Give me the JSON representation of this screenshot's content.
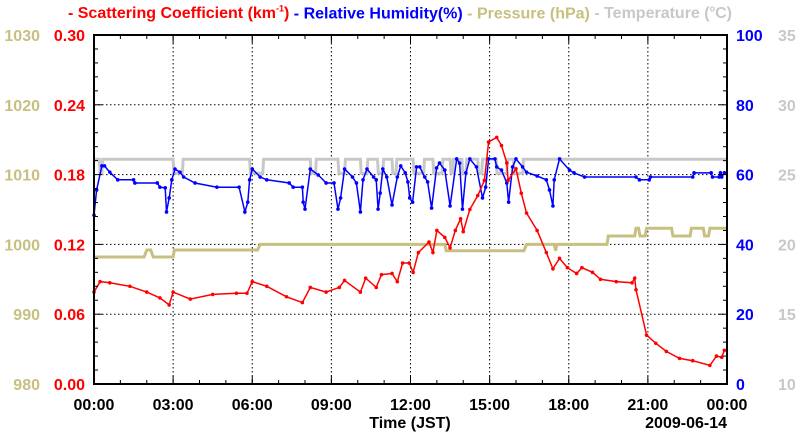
{
  "chart_data": {
    "type": "line",
    "legend": [
      {
        "label": "- Scattering Coefficient (km",
        "sup": "-1",
        "tail": ")",
        "color": "#ff0000"
      },
      {
        "label": " - Relative Humidity(%)",
        "color": "#0000ff"
      },
      {
        "label": " - Pressure (hPa)",
        "color": "#c8c080"
      },
      {
        "label": " - Temperature (",
        "sup": "o",
        "tail": "C)",
        "color": "#c8c8c8"
      }
    ],
    "xlabel": "Time (JST)",
    "date_label": "2009-06-14",
    "x_range": [
      0,
      24
    ],
    "x_ticks": [
      {
        "v": 0,
        "label": "00:00"
      },
      {
        "v": 3,
        "label": "03:00"
      },
      {
        "v": 6,
        "label": "06:00"
      },
      {
        "v": 9,
        "label": "09:00"
      },
      {
        "v": 12,
        "label": "12:00"
      },
      {
        "v": 15,
        "label": "15:00"
      },
      {
        "v": 18,
        "label": "18:00"
      },
      {
        "v": 21,
        "label": "21:00"
      },
      {
        "v": 24,
        "label": "00:00"
      }
    ],
    "axes": {
      "pressure": {
        "range": [
          980,
          1030
        ],
        "ticks": [
          "980",
          "990",
          "1000",
          "1010",
          "1020",
          "1030"
        ],
        "color": "#c8c080",
        "side": "left-outer"
      },
      "scattering": {
        "range": [
          0,
          0.3
        ],
        "ticks": [
          "0.00",
          "0.06",
          "0.12",
          "0.18",
          "0.24",
          "0.30"
        ],
        "color": "#ff0000",
        "side": "left-inner"
      },
      "humidity": {
        "range": [
          0,
          100
        ],
        "ticks": [
          "0",
          "20",
          "40",
          "60",
          "80",
          "100"
        ],
        "color": "#0000ff",
        "side": "right-inner"
      },
      "temperature": {
        "range": [
          10,
          35
        ],
        "ticks": [
          "10",
          "15",
          "20",
          "25",
          "30",
          "35"
        ],
        "color": "#c8c8c8",
        "side": "right-outer"
      }
    },
    "grid": true,
    "series": [
      {
        "name": "Scattering Coefficient",
        "axis": "scattering",
        "color": "#ff0000",
        "markers": true,
        "points": [
          [
            0,
            0.079
          ],
          [
            0.23,
            0.088
          ],
          [
            0.6,
            0.087
          ],
          [
            1.36,
            0.084
          ],
          [
            2.0,
            0.079
          ],
          [
            2.5,
            0.074
          ],
          [
            2.85,
            0.068
          ],
          [
            3.0,
            0.079
          ],
          [
            3.65,
            0.073
          ],
          [
            4.5,
            0.077
          ],
          [
            5.4,
            0.078
          ],
          [
            5.8,
            0.078
          ],
          [
            6.0,
            0.088
          ],
          [
            6.55,
            0.084
          ],
          [
            7.3,
            0.075
          ],
          [
            7.9,
            0.07
          ],
          [
            8.2,
            0.083
          ],
          [
            8.8,
            0.079
          ],
          [
            9.3,
            0.083
          ],
          [
            9.5,
            0.089
          ],
          [
            10.1,
            0.079
          ],
          [
            10.3,
            0.091
          ],
          [
            10.7,
            0.083
          ],
          [
            10.9,
            0.094
          ],
          [
            11.3,
            0.095
          ],
          [
            11.5,
            0.088
          ],
          [
            11.7,
            0.104
          ],
          [
            11.95,
            0.104
          ],
          [
            12.1,
            0.096
          ],
          [
            12.3,
            0.113
          ],
          [
            12.7,
            0.122
          ],
          [
            12.85,
            0.113
          ],
          [
            13.0,
            0.132
          ],
          [
            13.3,
            0.126
          ],
          [
            13.5,
            0.117
          ],
          [
            13.7,
            0.132
          ],
          [
            13.9,
            0.142
          ],
          [
            14.0,
            0.131
          ],
          [
            14.25,
            0.15
          ],
          [
            14.55,
            0.162
          ],
          [
            14.8,
            0.175
          ],
          [
            14.96,
            0.208
          ],
          [
            15.27,
            0.212
          ],
          [
            15.45,
            0.205
          ],
          [
            15.65,
            0.19
          ],
          [
            15.7,
            0.175
          ],
          [
            16.0,
            0.185
          ],
          [
            16.2,
            0.164
          ],
          [
            16.4,
            0.147
          ],
          [
            16.8,
            0.132
          ],
          [
            17.15,
            0.113
          ],
          [
            17.4,
            0.099
          ],
          [
            17.65,
            0.108
          ],
          [
            17.95,
            0.1
          ],
          [
            18.3,
            0.095
          ],
          [
            18.5,
            0.1
          ],
          [
            18.9,
            0.096
          ],
          [
            19.2,
            0.09
          ],
          [
            19.8,
            0.088
          ],
          [
            20.4,
            0.087
          ],
          [
            20.5,
            0.091
          ],
          [
            20.55,
            0.081
          ],
          [
            20.95,
            0.042
          ],
          [
            21.3,
            0.035
          ],
          [
            21.7,
            0.028
          ],
          [
            22.2,
            0.022
          ],
          [
            22.7,
            0.02
          ],
          [
            23.35,
            0.016
          ],
          [
            23.6,
            0.024
          ],
          [
            23.8,
            0.023
          ],
          [
            23.9,
            0.029
          ]
        ]
      },
      {
        "name": "Relative Humidity",
        "axis": "humidity",
        "color": "#0000ff",
        "markers": true,
        "points": [
          [
            0,
            48.4
          ],
          [
            0.1,
            55.6
          ],
          [
            0.3,
            62.5
          ],
          [
            0.4,
            62.5
          ],
          [
            0.6,
            60.7
          ],
          [
            0.9,
            58.5
          ],
          [
            1.5,
            58.5
          ],
          [
            1.55,
            57.6
          ],
          [
            2.4,
            57.6
          ],
          [
            2.5,
            56.4
          ],
          [
            2.7,
            56.2
          ],
          [
            2.75,
            49.3
          ],
          [
            2.85,
            53.3
          ],
          [
            2.95,
            58.5
          ],
          [
            3.07,
            61.6
          ],
          [
            3.26,
            60.7
          ],
          [
            3.4,
            59.3
          ],
          [
            3.83,
            57.6
          ],
          [
            4.66,
            56.4
          ],
          [
            5.5,
            56.4
          ],
          [
            5.72,
            49.3
          ],
          [
            5.83,
            52.1
          ],
          [
            5.9,
            58.5
          ],
          [
            6.0,
            61.6
          ],
          [
            6.3,
            59.3
          ],
          [
            6.55,
            58.5
          ],
          [
            7.4,
            57.6
          ],
          [
            7.55,
            56.4
          ],
          [
            7.9,
            56.4
          ],
          [
            7.93,
            52.1
          ],
          [
            8.0,
            50.1
          ],
          [
            8.2,
            61.6
          ],
          [
            8.5,
            59.9
          ],
          [
            8.8,
            57.6
          ],
          [
            9.1,
            57.6
          ],
          [
            9.25,
            50.1
          ],
          [
            9.35,
            53.3
          ],
          [
            9.5,
            61.6
          ],
          [
            9.8,
            59.3
          ],
          [
            9.95,
            57.6
          ],
          [
            10.1,
            49.3
          ],
          [
            10.2,
            58.5
          ],
          [
            10.35,
            61.6
          ],
          [
            10.6,
            59.3
          ],
          [
            10.7,
            58.5
          ],
          [
            10.77,
            50.1
          ],
          [
            10.85,
            54.7
          ],
          [
            10.95,
            61.6
          ],
          [
            11.1,
            59.3
          ],
          [
            11.3,
            51.3
          ],
          [
            11.5,
            59.3
          ],
          [
            11.63,
            62.5
          ],
          [
            11.8,
            60.5
          ],
          [
            11.9,
            57.9
          ],
          [
            11.97,
            53.3
          ],
          [
            12.08,
            52.1
          ],
          [
            12.23,
            62.2
          ],
          [
            12.35,
            62.2
          ],
          [
            12.54,
            59.3
          ],
          [
            12.65,
            57.9
          ],
          [
            12.8,
            50.4
          ],
          [
            12.99,
            61.9
          ],
          [
            13.1,
            63.3
          ],
          [
            13.3,
            61.3
          ],
          [
            13.5,
            51.0
          ],
          [
            13.75,
            64.5
          ],
          [
            13.86,
            63.3
          ],
          [
            13.97,
            50.1
          ],
          [
            14.1,
            60.5
          ],
          [
            14.25,
            64.5
          ],
          [
            14.5,
            62.2
          ],
          [
            14.73,
            53.3
          ],
          [
            14.85,
            56.4
          ],
          [
            14.96,
            64.5
          ],
          [
            15.2,
            64.5
          ],
          [
            15.27,
            62.2
          ],
          [
            15.45,
            61.3
          ],
          [
            15.65,
            57.6
          ],
          [
            15.72,
            52.1
          ],
          [
            15.87,
            62.2
          ],
          [
            16.0,
            64.5
          ],
          [
            16.25,
            62.2
          ],
          [
            16.4,
            60.7
          ],
          [
            16.8,
            59.6
          ],
          [
            17.15,
            58.5
          ],
          [
            17.27,
            55.6
          ],
          [
            17.4,
            51.0
          ],
          [
            17.45,
            58.5
          ],
          [
            17.65,
            64.5
          ],
          [
            18.03,
            61.3
          ],
          [
            18.2,
            60.5
          ],
          [
            18.6,
            59.3
          ],
          [
            20.55,
            59.3
          ],
          [
            20.68,
            58.5
          ],
          [
            21.05,
            58.5
          ],
          [
            21.1,
            59.3
          ],
          [
            22.7,
            59.3
          ],
          [
            22.75,
            60.5
          ],
          [
            23.4,
            60.5
          ],
          [
            23.45,
            59.3
          ],
          [
            23.7,
            59.3
          ],
          [
            23.75,
            60.5
          ],
          [
            23.8,
            59.3
          ],
          [
            23.9,
            60.5
          ]
        ]
      },
      {
        "name": "Pressure",
        "axis": "pressure",
        "color": "#c8c080",
        "markers": false,
        "points": [
          [
            0,
            998.2
          ],
          [
            1.9,
            998.2
          ],
          [
            2.0,
            999.2
          ],
          [
            2.15,
            999.2
          ],
          [
            2.25,
            998.2
          ],
          [
            3.0,
            998.2
          ],
          [
            3.05,
            999.2
          ],
          [
            6.2,
            999.2
          ],
          [
            6.3,
            1000
          ],
          [
            13.3,
            1000
          ],
          [
            13.35,
            999.1
          ],
          [
            16.3,
            999.1
          ],
          [
            16.4,
            1000
          ],
          [
            17.45,
            1000
          ],
          [
            17.5,
            999.1
          ],
          [
            17.55,
            1000
          ],
          [
            19.45,
            1000
          ],
          [
            19.5,
            1001.2
          ],
          [
            20.5,
            1001.2
          ],
          [
            20.55,
            1002.3
          ],
          [
            20.65,
            1002.3
          ],
          [
            20.7,
            1001.2
          ],
          [
            20.9,
            1001.2
          ],
          [
            20.95,
            1002.3
          ],
          [
            21.9,
            1002.3
          ],
          [
            21.95,
            1001.2
          ],
          [
            22.6,
            1001.2
          ],
          [
            22.65,
            1002.3
          ],
          [
            23.1,
            1002.3
          ],
          [
            23.15,
            1001.2
          ],
          [
            23.3,
            1001.2
          ],
          [
            23.35,
            1002.3
          ],
          [
            24,
            1002.3
          ]
        ]
      },
      {
        "name": "Temperature",
        "axis": "temperature",
        "color": "#c8c8c8",
        "markers": false,
        "high": 26.1,
        "low": 25.1,
        "low_intervals": [
          [
            0.2,
            0.3
          ],
          [
            3.0,
            3.35
          ],
          [
            5.9,
            6.4
          ],
          [
            8.2,
            8.4
          ],
          [
            9.25,
            9.5
          ],
          [
            10.1,
            10.35
          ],
          [
            10.75,
            10.95
          ],
          [
            11.3,
            11.45
          ],
          [
            12.1,
            12.5
          ],
          [
            12.85,
            13.2
          ],
          [
            13.5,
            13.6
          ],
          [
            13.95,
            14.1
          ],
          [
            14.55,
            14.7
          ],
          [
            15.25,
            15.65
          ],
          [
            15.9,
            16.25
          ]
        ]
      }
    ]
  }
}
